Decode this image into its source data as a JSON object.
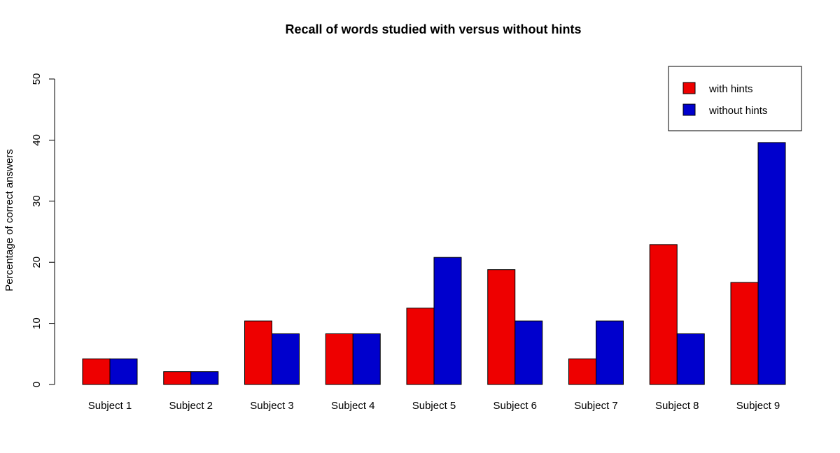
{
  "chart_data": {
    "type": "bar",
    "title": "Recall of words studied with versus without hints",
    "xlabel": "",
    "ylabel": "Percentage of correct answers",
    "categories": [
      "Subject 1",
      "Subject 2",
      "Subject 3",
      "Subject 4",
      "Subject 5",
      "Subject 6",
      "Subject 7",
      "Subject 8",
      "Subject 9"
    ],
    "series": [
      {
        "name": "with hints",
        "color": "#ee0000",
        "values": [
          4.2,
          2.1,
          10.4,
          8.3,
          12.5,
          18.8,
          4.2,
          22.9,
          16.7
        ]
      },
      {
        "name": "without hints",
        "color": "#0000cd",
        "values": [
          4.2,
          2.1,
          8.3,
          8.3,
          20.8,
          10.4,
          10.4,
          8.3,
          39.6
        ]
      }
    ],
    "ylim": [
      0,
      50
    ],
    "yticks": [
      0,
      10,
      20,
      30,
      40,
      50
    ],
    "grid": false,
    "legend_position": "top-right"
  }
}
